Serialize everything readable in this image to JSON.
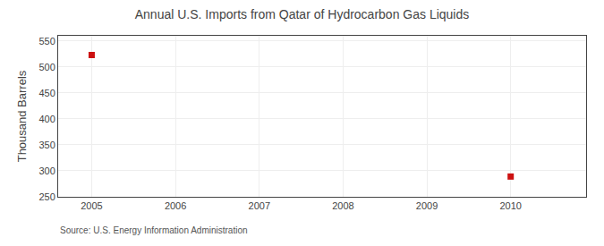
{
  "chart_data": {
    "type": "scatter",
    "title": "Annual U.S. Imports from Qatar of Hydrocarbon Gas Liquids",
    "ylabel": "Thousand Barrels",
    "annotations": [
      "Source: U.S. Energy Information Administration"
    ],
    "x": [
      2005,
      2010
    ],
    "values": [
      523,
      289
    ],
    "color": "#cc1111",
    "marker": "square",
    "xlim": [
      2004.6,
      2010.9
    ],
    "xticks": [
      2005,
      2006,
      2007,
      2008,
      2009,
      2010
    ],
    "ylim": [
      250,
      560
    ],
    "yticks": [
      250,
      300,
      350,
      400,
      450,
      500,
      550
    ],
    "grid": true
  }
}
